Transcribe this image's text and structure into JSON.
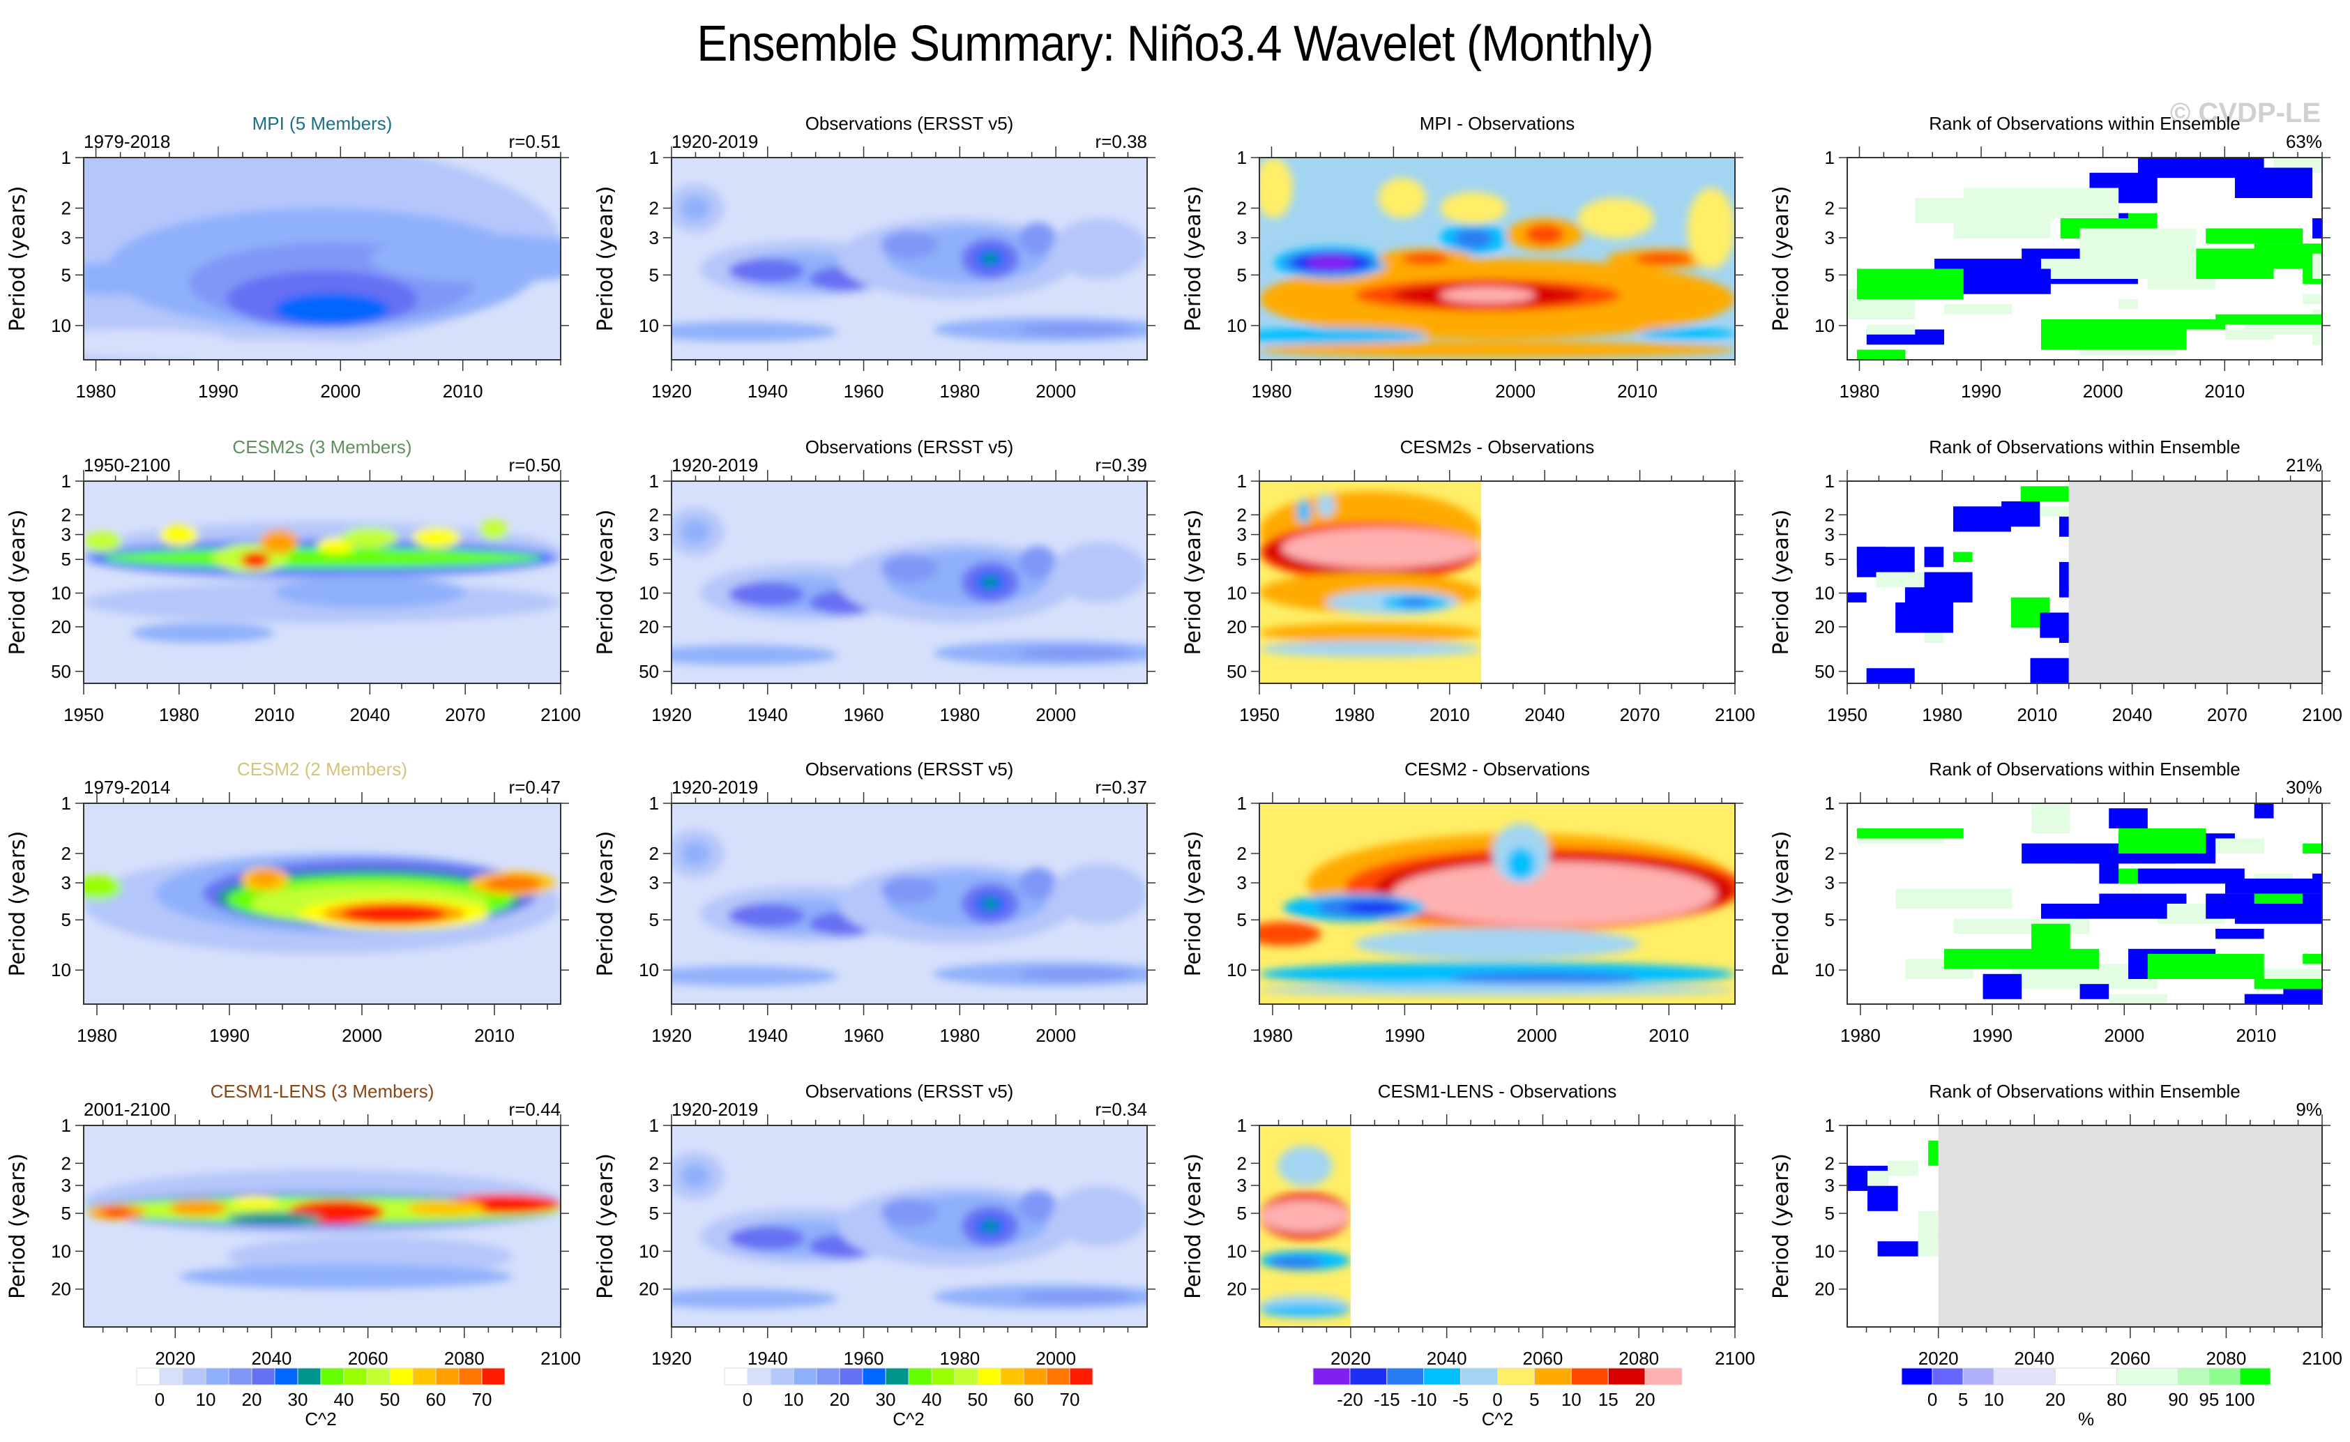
{
  "title": "Ensemble Summary: Niño3.4 Wavelet (Monthly)",
  "watermark": "© CVDP-LE",
  "y_axis_label": "Period (years)",
  "chart_data": [
    {
      "type": "heatmap",
      "row": 0,
      "col": 0,
      "title": "MPI (5 Members)",
      "title_color": "#1a6f8a",
      "left_label": "1979-2018",
      "right_label": "r=0.51",
      "xlim": [
        1979,
        2018
      ],
      "xticks": [
        1980,
        1990,
        2000,
        2010
      ],
      "x_minor_step": 2,
      "ylim_period": [
        1,
        16
      ],
      "yticks": [
        1,
        2,
        3,
        5,
        10
      ],
      "field": "power",
      "colorbar": "power"
    },
    {
      "type": "heatmap",
      "row": 0,
      "col": 1,
      "title": "Observations (ERSST v5)",
      "title_color": "#000000",
      "left_label": "1920-2019",
      "right_label": "r=0.38",
      "xlim": [
        1920,
        2019
      ],
      "xticks": [
        1920,
        1940,
        1960,
        1980,
        2000
      ],
      "x_minor_step": 5,
      "ylim_period": [
        1,
        16
      ],
      "yticks": [
        1,
        2,
        3,
        5,
        10
      ],
      "field": "power",
      "colorbar": "power"
    },
    {
      "type": "heatmap",
      "row": 0,
      "col": 2,
      "title": "MPI - Observations",
      "title_color": "#000000",
      "left_label": "",
      "right_label": "",
      "xlim": [
        1979,
        2018
      ],
      "xticks": [
        1980,
        1990,
        2000,
        2010
      ],
      "x_minor_step": 2,
      "ylim_period": [
        1,
        16
      ],
      "yticks": [
        1,
        2,
        3,
        5,
        10
      ],
      "field": "difference",
      "colorbar": "difference"
    },
    {
      "type": "heatmap",
      "row": 0,
      "col": 3,
      "title": "Rank of Observations within Ensemble",
      "title_color": "#000000",
      "left_label": "",
      "right_label": "63%",
      "xlim": [
        1979,
        2018
      ],
      "xticks": [
        1980,
        1990,
        2000,
        2010
      ],
      "x_minor_step": 2,
      "ylim_period": [
        1,
        16
      ],
      "yticks": [
        1,
        2,
        3,
        5,
        10
      ],
      "field": "rank",
      "colorbar": "rank"
    },
    {
      "type": "heatmap",
      "row": 1,
      "col": 0,
      "title": "CESM2s (3 Members)",
      "title_color": "#5f8f5f",
      "left_label": "1950-2100",
      "right_label": "r=0.50",
      "xlim": [
        1950,
        2100
      ],
      "xticks": [
        1950,
        1980,
        2010,
        2040,
        2070,
        2100
      ],
      "x_minor_step": 10,
      "ylim_period": [
        1,
        64
      ],
      "yticks": [
        1,
        2,
        3,
        5,
        10,
        20,
        50
      ],
      "field": "power",
      "colorbar": "power"
    },
    {
      "type": "heatmap",
      "row": 1,
      "col": 1,
      "title": "Observations (ERSST v5)",
      "title_color": "#000000",
      "left_label": "1920-2019",
      "right_label": "r=0.39",
      "xlim": [
        1920,
        2019
      ],
      "xticks": [
        1920,
        1940,
        1960,
        1980,
        2000
      ],
      "x_minor_step": 5,
      "ylim_period": [
        1,
        64
      ],
      "yticks": [
        1,
        2,
        3,
        5,
        10,
        20,
        50
      ],
      "field": "power",
      "colorbar": "power"
    },
    {
      "type": "heatmap",
      "row": 1,
      "col": 2,
      "title": "CESM2s - Observations",
      "title_color": "#000000",
      "left_label": "",
      "right_label": "",
      "xlim": [
        1950,
        2100
      ],
      "xticks": [
        1950,
        1980,
        2010,
        2040,
        2070,
        2100
      ],
      "x_minor_step": 10,
      "ylim_period": [
        1,
        64
      ],
      "yticks": [
        1,
        2,
        3,
        5,
        10,
        20,
        50
      ],
      "field": "difference",
      "colorbar": "difference",
      "data_end_year": 2020,
      "empty_fill": "white"
    },
    {
      "type": "heatmap",
      "row": 1,
      "col": 3,
      "title": "Rank of Observations within Ensemble",
      "title_color": "#000000",
      "left_label": "",
      "right_label": "21%",
      "xlim": [
        1950,
        2100
      ],
      "xticks": [
        1950,
        1980,
        2010,
        2040,
        2070,
        2100
      ],
      "x_minor_step": 10,
      "ylim_period": [
        1,
        64
      ],
      "yticks": [
        1,
        2,
        3,
        5,
        10,
        20,
        50
      ],
      "field": "rank",
      "colorbar": "rank",
      "data_end_year": 2020,
      "empty_fill": "gray"
    },
    {
      "type": "heatmap",
      "row": 2,
      "col": 0,
      "title": "CESM2 (2 Members)",
      "title_color": "#d6c27a",
      "left_label": "1979-2014",
      "right_label": "r=0.47",
      "xlim": [
        1979,
        2015
      ],
      "xticks": [
        1980,
        1990,
        2000,
        2010
      ],
      "x_minor_step": 2,
      "ylim_period": [
        1,
        16
      ],
      "yticks": [
        1,
        2,
        3,
        5,
        10
      ],
      "field": "power",
      "colorbar": "power"
    },
    {
      "type": "heatmap",
      "row": 2,
      "col": 1,
      "title": "Observations (ERSST v5)",
      "title_color": "#000000",
      "left_label": "1920-2019",
      "right_label": "r=0.37",
      "xlim": [
        1920,
        2019
      ],
      "xticks": [
        1920,
        1940,
        1960,
        1980,
        2000
      ],
      "x_minor_step": 5,
      "ylim_period": [
        1,
        16
      ],
      "yticks": [
        1,
        2,
        3,
        5,
        10
      ],
      "field": "power",
      "colorbar": "power"
    },
    {
      "type": "heatmap",
      "row": 2,
      "col": 2,
      "title": "CESM2 - Observations",
      "title_color": "#000000",
      "left_label": "",
      "right_label": "",
      "xlim": [
        1979,
        2015
      ],
      "xticks": [
        1980,
        1990,
        2000,
        2010
      ],
      "x_minor_step": 2,
      "ylim_period": [
        1,
        16
      ],
      "yticks": [
        1,
        2,
        3,
        5,
        10
      ],
      "field": "difference",
      "colorbar": "difference"
    },
    {
      "type": "heatmap",
      "row": 2,
      "col": 3,
      "title": "Rank of Observations within Ensemble",
      "title_color": "#000000",
      "left_label": "",
      "right_label": "30%",
      "xlim": [
        1979,
        2015
      ],
      "xticks": [
        1980,
        1990,
        2000,
        2010
      ],
      "x_minor_step": 2,
      "ylim_period": [
        1,
        16
      ],
      "yticks": [
        1,
        2,
        3,
        5,
        10
      ],
      "field": "rank",
      "colorbar": "rank"
    },
    {
      "type": "heatmap",
      "row": 3,
      "col": 0,
      "title": "CESM1-LENS (3 Members)",
      "title_color": "#8b4513",
      "left_label": "2001-2100",
      "right_label": "r=0.44",
      "xlim": [
        2001,
        2100
      ],
      "xticks": [
        2020,
        2040,
        2060,
        2080,
        2100
      ],
      "x_minor_step": 5,
      "ylim_period": [
        1,
        40
      ],
      "yticks": [
        1,
        2,
        3,
        5,
        10,
        20
      ],
      "field": "power",
      "colorbar": "power"
    },
    {
      "type": "heatmap",
      "row": 3,
      "col": 1,
      "title": "Observations (ERSST v5)",
      "title_color": "#000000",
      "left_label": "1920-2019",
      "right_label": "r=0.34",
      "xlim": [
        1920,
        2019
      ],
      "xticks": [
        1920,
        1940,
        1960,
        1980,
        2000
      ],
      "x_minor_step": 5,
      "ylim_period": [
        1,
        40
      ],
      "yticks": [
        1,
        2,
        3,
        5,
        10,
        20
      ],
      "field": "power",
      "colorbar": "power"
    },
    {
      "type": "heatmap",
      "row": 3,
      "col": 2,
      "title": "CESM1-LENS - Observations",
      "title_color": "#000000",
      "left_label": "",
      "right_label": "",
      "xlim": [
        2001,
        2100
      ],
      "xticks": [
        2020,
        2040,
        2060,
        2080,
        2100
      ],
      "x_minor_step": 5,
      "ylim_period": [
        1,
        40
      ],
      "yticks": [
        1,
        2,
        3,
        5,
        10,
        20
      ],
      "field": "difference",
      "colorbar": "difference",
      "data_end_year": 2020,
      "empty_fill": "white"
    },
    {
      "type": "heatmap",
      "row": 3,
      "col": 3,
      "title": "Rank of Observations within Ensemble",
      "title_color": "#000000",
      "left_label": "",
      "right_label": "9%",
      "xlim": [
        2001,
        2100
      ],
      "xticks": [
        2020,
        2040,
        2060,
        2080,
        2100
      ],
      "x_minor_step": 5,
      "ylim_period": [
        1,
        40
      ],
      "yticks": [
        1,
        2,
        3,
        5,
        10,
        20
      ],
      "field": "rank",
      "colorbar": "rank",
      "data_end_year": 2020,
      "empty_fill": "gray"
    }
  ],
  "colorbars": {
    "power": {
      "units": "C^2",
      "colors": [
        "#ffffff",
        "#d6e0fb",
        "#b5c6fa",
        "#8fb0fb",
        "#8097f7",
        "#6670f3",
        "#0066ff",
        "#00968f",
        "#66ff00",
        "#99ff00",
        "#c2ff33",
        "#ffff00",
        "#ffc400",
        "#ffa000",
        "#ff7700",
        "#ff1a00"
      ],
      "labels": [
        "0",
        "10",
        "20",
        "30",
        "40",
        "50",
        "60",
        "70"
      ],
      "label_every_boundary": 2
    },
    "difference": {
      "units": "C^2",
      "colors": [
        "#8020f0",
        "#1a2ef5",
        "#2a7cf2",
        "#00bfff",
        "#a3d5f2",
        "#ffee66",
        "#ffaa00",
        "#ff4a00",
        "#d90000",
        "#ffb0b0"
      ],
      "labels": [
        "-20",
        "-15",
        "-10",
        "-5",
        "0",
        "5",
        "10",
        "15",
        "20"
      ]
    },
    "rank": {
      "units": "%",
      "colors": [
        "#0000ff",
        "#6666ff",
        "#b0b0fb",
        "#e0e3fb",
        "#ffffff",
        "#e3fde3",
        "#bafcba",
        "#8ffc8f",
        "#00ff00"
      ],
      "widths": [
        1,
        1,
        1,
        2,
        2,
        2,
        1,
        1,
        1
      ],
      "labels": [
        "0",
        "5",
        "10",
        "20",
        "80",
        "90",
        "95",
        "100"
      ]
    },
    "gray_fill": "#e0e0e0"
  }
}
